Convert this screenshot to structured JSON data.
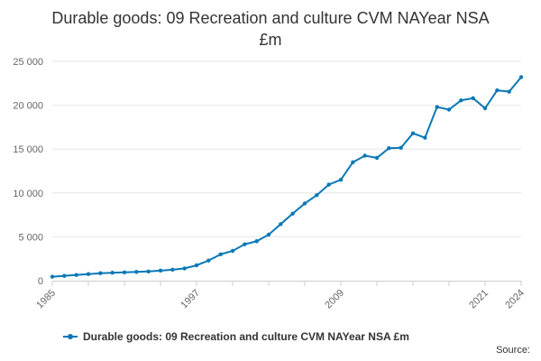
{
  "chart_data": {
    "type": "line",
    "title_lines": [
      "Durable goods: 09 Recreation and culture CVM NAYear NSA",
      "£m"
    ],
    "xlabel": "",
    "ylabel": "",
    "x_ticks": [
      "1985",
      "1997",
      "2009",
      "2021",
      "2024"
    ],
    "y_ticks": [
      "0",
      "5 000",
      "10 000",
      "15 000",
      "20 000",
      "25 000"
    ],
    "y_tick_values": [
      0,
      5000,
      10000,
      15000,
      20000,
      25000
    ],
    "xlim": [
      1985,
      2024
    ],
    "ylim": [
      0,
      25000
    ],
    "grid": true,
    "legend_position": "bottom",
    "series": [
      {
        "name": "Durable goods: 09 Recreation and culture CVM NAYear NSA £m",
        "color": "#0b78b5",
        "x": [
          1985,
          1986,
          1987,
          1988,
          1989,
          1990,
          1991,
          1992,
          1993,
          1994,
          1995,
          1996,
          1997,
          1998,
          1999,
          2000,
          2001,
          2002,
          2003,
          2004,
          2005,
          2006,
          2007,
          2008,
          2009,
          2010,
          2011,
          2012,
          2013,
          2014,
          2015,
          2016,
          2017,
          2018,
          2019,
          2020,
          2021,
          2022,
          2023,
          2024
        ],
        "values": [
          450,
          550,
          650,
          750,
          850,
          900,
          950,
          1000,
          1050,
          1150,
          1250,
          1400,
          1750,
          2300,
          3000,
          3400,
          4150,
          4500,
          5250,
          6450,
          7650,
          8800,
          9750,
          10950,
          11500,
          13500,
          14250,
          14000,
          15100,
          15150,
          16800,
          16300,
          19800,
          19500,
          20550,
          20800,
          19650,
          21700,
          21550,
          23200
        ]
      }
    ]
  },
  "source_label": "Source:"
}
